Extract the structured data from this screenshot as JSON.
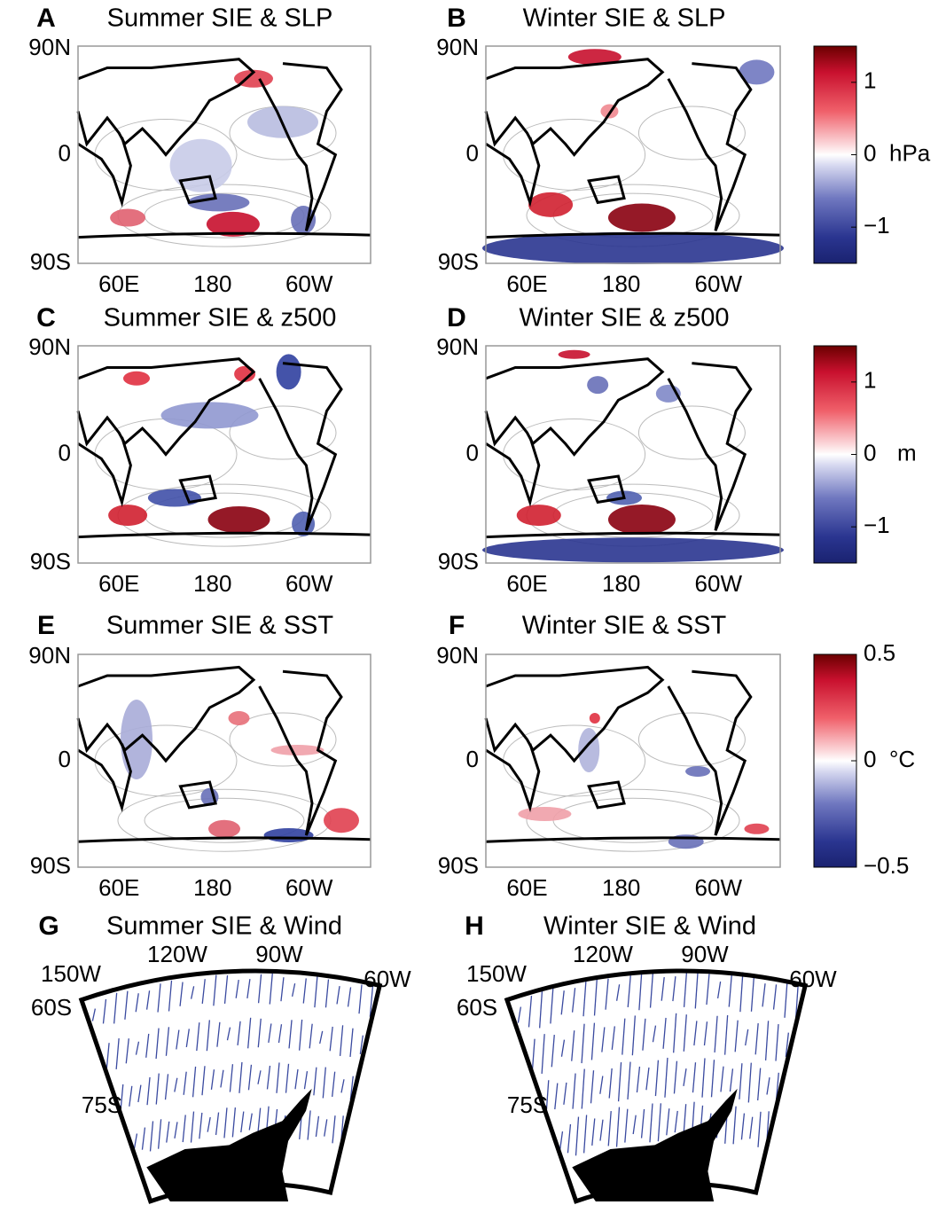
{
  "panels": [
    {
      "letter": "A",
      "title": "Summer SIE & SLP",
      "lat_labels": [
        "90N",
        "0",
        "90S"
      ],
      "lon_labels": [
        "60E",
        "180",
        "60W"
      ]
    },
    {
      "letter": "B",
      "title": "Winter SIE & SLP",
      "lat_labels": [
        "90N",
        "0",
        "90S"
      ],
      "lon_labels": [
        "60E",
        "180",
        "60W"
      ]
    },
    {
      "letter": "C",
      "title": "Summer SIE & z500",
      "lat_labels": [
        "90N",
        "0",
        "90S"
      ],
      "lon_labels": [
        "60E",
        "180",
        "60W"
      ]
    },
    {
      "letter": "D",
      "title": "Winter SIE & z500",
      "lat_labels": [
        "90N",
        "0",
        "90S"
      ],
      "lon_labels": [
        "60E",
        "180",
        "60W"
      ]
    },
    {
      "letter": "E",
      "title": "Summer SIE & SST",
      "lat_labels": [
        "90N",
        "0",
        "90S"
      ],
      "lon_labels": [
        "60E",
        "180",
        "60W"
      ]
    },
    {
      "letter": "F",
      "title": "Winter SIE & SST",
      "lat_labels": [
        "90N",
        "0",
        "90S"
      ],
      "lon_labels": [
        "60E",
        "180",
        "60W"
      ]
    }
  ],
  "colorbars": [
    {
      "lim": [
        -1.5,
        1.5
      ],
      "ticks": [
        1,
        0,
        {
          "value": -1,
          "label": "−1"
        }
      ],
      "unit": "hPa"
    },
    {
      "lim": [
        -1.5,
        1.5
      ],
      "ticks": [
        1,
        0,
        {
          "value": -1,
          "label": "−1"
        }
      ],
      "unit": "m"
    },
    {
      "lim": [
        -0.5,
        0.5
      ],
      "ticks": [
        0.5,
        0,
        {
          "value": -0.5,
          "label": "−0.5"
        }
      ],
      "unit": "°C"
    }
  ],
  "polar_panels": [
    {
      "letter": "G",
      "title": "Summer SIE & Wind",
      "lon_labels": [
        "150W",
        "120W",
        "90W",
        "60W"
      ],
      "lat_labels": [
        "60S",
        "75S"
      ]
    },
    {
      "letter": "H",
      "title": "Winter SIE & Wind",
      "lon_labels": [
        "150W",
        "120W",
        "90W",
        "60W"
      ],
      "lat_labels": [
        "60S",
        "75S"
      ]
    }
  ]
}
